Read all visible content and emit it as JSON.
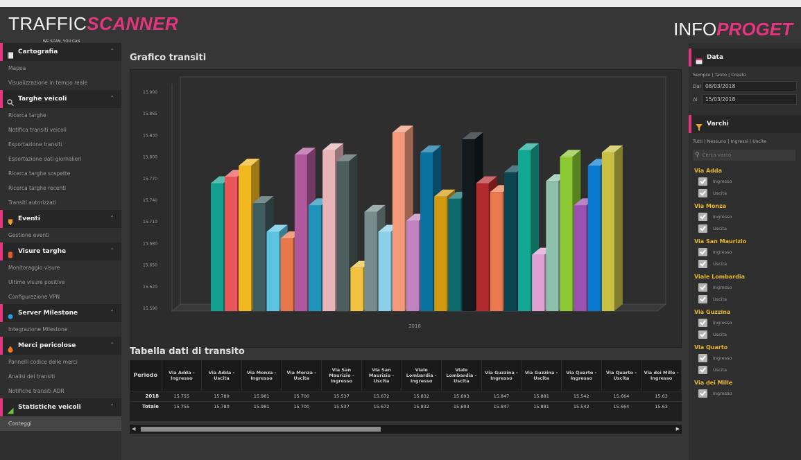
{
  "header": {
    "logo_left_main": "TRAFFIC",
    "logo_left_accent": "SCANNER",
    "logo_left_tagline": "WE SCAN, YOU CAN",
    "logo_right_main": "INFO",
    "logo_right_accent": "PROGET"
  },
  "sidebar": {
    "sections": [
      {
        "label": "Cartografia",
        "icon": "book-icon",
        "items": [
          "Mappa",
          "Visualizzazione in tempo reale"
        ]
      },
      {
        "label": "Targhe veicoli",
        "icon": "search-icon",
        "items": [
          "Ricerca targhe",
          "Notifica transiti veicoli",
          "Esportazione transiti",
          "Esportazione dati giornalieri",
          "Ricerca targhe sospette",
          "Ricerca targhe recenti",
          "Transiti autorizzati"
        ]
      },
      {
        "label": "Eventi",
        "icon": "trophy-icon",
        "items": [
          "Gestione eventi"
        ]
      },
      {
        "label": "Visure targhe",
        "icon": "record-icon",
        "items": [
          "Monitoraggio visure",
          "Ultime visure positive",
          "Configurazione VPN"
        ]
      },
      {
        "label": "Server Milestone",
        "icon": "server-icon",
        "items": [
          "Integrazione Milestone"
        ]
      },
      {
        "label": "Merci pericolose",
        "icon": "fire-icon",
        "items": [
          "Pannelli codice delle merci",
          "Analisi dei transiti",
          "Notifiche transiti ADR"
        ]
      },
      {
        "label": "Statistiche veicoli",
        "icon": "chart-icon",
        "items": [
          "Conteggi"
        ]
      }
    ]
  },
  "main": {
    "chart_title": "Grafico transiti",
    "table_title": "Tabella dati di transito",
    "table": {
      "header_first": "Periodo",
      "columns": [
        "Via Adda - Ingresso",
        "Via Adda - Uscita",
        "Via Monza - Ingresso",
        "Via Monza - Uscita",
        "Via San Maurizio - Ingresso",
        "Via San Maurizio - Uscita",
        "Viale Lombardia - Ingresso",
        "Viale Lombardia - Uscita",
        "Via Guzzina - Ingresso",
        "Via Guzzina - Uscita",
        "Via Quarto - Ingresso",
        "Via Quarto - Uscita",
        "Via dei Mille - Ingresso"
      ],
      "rows": [
        {
          "label": "2018",
          "values": [
            "15.755",
            "15.780",
            "15.981",
            "15.700",
            "15.537",
            "15.672",
            "15.832",
            "15.693",
            "15.847",
            "15.881",
            "15.542",
            "15.664",
            "15.63"
          ]
        },
        {
          "label": "Totale",
          "values": [
            "15.755",
            "15.780",
            "15.981",
            "15.700",
            "15.537",
            "15.672",
            "15.832",
            "15.693",
            "15.847",
            "15.881",
            "15.542",
            "15.664",
            "15.63"
          ]
        }
      ]
    }
  },
  "chart_data": {
    "type": "bar",
    "title": "",
    "categories": [
      "2018"
    ],
    "x_label": "2018",
    "ylim": [
      15.5,
      16.0
    ],
    "y_ticks": [
      "15.900",
      "15.865",
      "15.830",
      "15.800",
      "15.770",
      "15.740",
      "15.710",
      "15.680",
      "15.650",
      "15.620",
      "15.590"
    ],
    "series": [
      {
        "value": 15.79,
        "color": "#14a090"
      },
      {
        "value": 15.805,
        "color": "#e8555a"
      },
      {
        "value": 15.83,
        "color": "#f2b820"
      },
      {
        "value": 15.745,
        "color": "#3f5c5e"
      },
      {
        "value": 15.68,
        "color": "#5cc4e2"
      },
      {
        "value": 15.665,
        "color": "#e8784a"
      },
      {
        "value": 15.855,
        "color": "#b0589c"
      },
      {
        "value": 15.74,
        "color": "#1e94b8"
      },
      {
        "value": 15.865,
        "color": "#e8b4b8"
      },
      {
        "value": 15.84,
        "color": "#4c5e5e"
      },
      {
        "value": 15.598,
        "color": "#f2c240"
      },
      {
        "value": 15.725,
        "color": "#778c8c"
      },
      {
        "value": 15.68,
        "color": "#8cd0e8"
      },
      {
        "value": 15.905,
        "color": "#f29a7a"
      },
      {
        "value": 15.705,
        "color": "#c082c0"
      },
      {
        "value": 15.86,
        "color": "#0a72a0"
      },
      {
        "value": 15.76,
        "color": "#d29a10"
      },
      {
        "value": 15.755,
        "color": "#0c6a6a"
      },
      {
        "value": 15.89,
        "color": "#121a1e"
      },
      {
        "value": 15.79,
        "color": "#b22a2e"
      },
      {
        "value": 15.77,
        "color": "#ea7a4e"
      },
      {
        "value": 15.815,
        "color": "#0c4450"
      },
      {
        "value": 15.865,
        "color": "#12a894"
      },
      {
        "value": 15.628,
        "color": "#e0a0d2"
      },
      {
        "value": 15.795,
        "color": "#8cc0ac"
      },
      {
        "value": 15.85,
        "color": "#8cc832"
      },
      {
        "value": 15.74,
        "color": "#9a52b0"
      },
      {
        "value": 15.83,
        "color": "#0a7ad0"
      },
      {
        "value": 15.86,
        "color": "#c8c042"
      }
    ]
  },
  "right_sidebar": {
    "date_section": {
      "title": "Data",
      "filters": "Sempre | Tanto | Creato",
      "from_label": "Dal",
      "from_value": "08/03/2018",
      "to_label": "Al",
      "to_value": "15/03/2018"
    },
    "gates_section": {
      "title": "Varchi",
      "filters": "Tutti | Nessuno | Ingressi | Uscite",
      "search_placeholder": "Cerca varco",
      "streets": [
        {
          "name": "Via Adda",
          "options": [
            "Ingresso",
            "Uscita"
          ]
        },
        {
          "name": "Via Monza",
          "options": [
            "Ingresso",
            "Uscita"
          ]
        },
        {
          "name": "Via San Maurizio",
          "options": [
            "Ingresso",
            "Uscita"
          ]
        },
        {
          "name": "Viale Lombardia",
          "options": [
            "Ingresso",
            "Uscita"
          ]
        },
        {
          "name": "Via Guzzina",
          "options": [
            "Ingresso",
            "Uscita"
          ]
        },
        {
          "name": "Via Quarto",
          "options": [
            "Ingresso",
            "Uscita"
          ]
        },
        {
          "name": "Via dei Mille",
          "options": [
            "Ingresso"
          ]
        }
      ]
    }
  },
  "colors": {
    "accent": "#e6357f",
    "street_label": "#e9b92a",
    "background": "#363636"
  }
}
